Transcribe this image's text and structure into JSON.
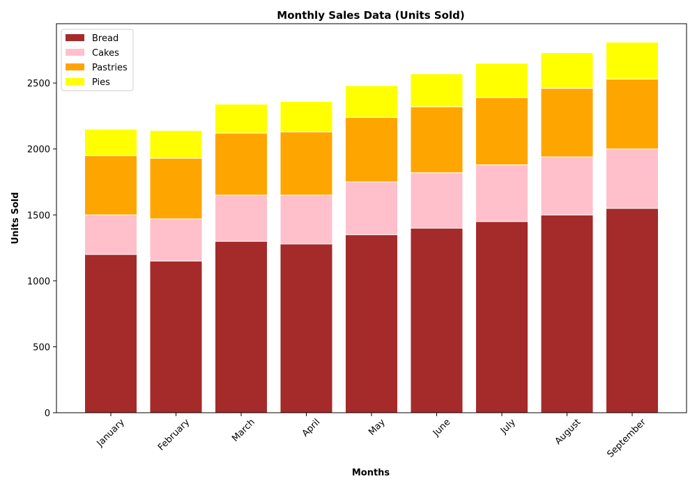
{
  "chart_data": {
    "type": "bar",
    "stacked": true,
    "title": "Monthly Sales Data (Units Sold)",
    "xlabel": "Months",
    "ylabel": "Units Sold",
    "categories": [
      "January",
      "February",
      "March",
      "April",
      "May",
      "June",
      "July",
      "August",
      "September"
    ],
    "ylim": [
      0,
      2950
    ],
    "yticks": [
      0,
      500,
      1000,
      1500,
      2000,
      2500
    ],
    "legend_position": "top-left",
    "grid": false,
    "series": [
      {
        "name": "Bread",
        "color": "#a52a2a",
        "values": [
          1200,
          1150,
          1300,
          1280,
          1350,
          1400,
          1450,
          1500,
          1550
        ]
      },
      {
        "name": "Cakes",
        "color": "#ffc0cb",
        "values": [
          300,
          320,
          350,
          370,
          400,
          420,
          430,
          440,
          450
        ]
      },
      {
        "name": "Pastries",
        "color": "#ffa500",
        "values": [
          450,
          460,
          470,
          480,
          490,
          500,
          510,
          520,
          530
        ]
      },
      {
        "name": "Pies",
        "color": "#ffff00",
        "values": [
          200,
          210,
          220,
          230,
          240,
          250,
          260,
          270,
          280
        ]
      }
    ]
  }
}
